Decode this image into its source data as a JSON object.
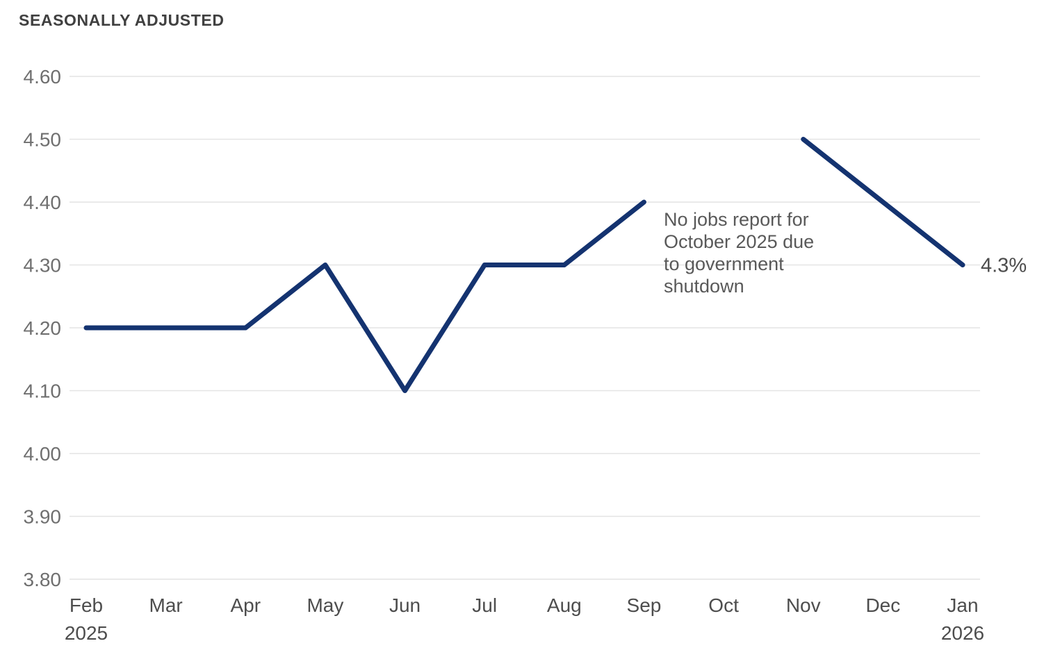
{
  "title": "SEASONALLY ADJUSTED",
  "colors": {
    "line": "#143370",
    "gridline": "#e4e4e4",
    "title_text": "#404040",
    "y_tick_text": "#6f6f6f",
    "x_tick_text": "#4d4d4d",
    "annotation_text": "#595959",
    "background": "#ffffff"
  },
  "chart_data": {
    "type": "line",
    "title": "SEASONALLY ADJUSTED",
    "categories": [
      "Feb\n2025",
      "Mar",
      "Apr",
      "May",
      "Jun",
      "Jul",
      "Aug",
      "Sep",
      "Oct",
      "Nov",
      "Dec",
      "Jan\n2026"
    ],
    "values": [
      4.2,
      4.2,
      4.2,
      4.3,
      4.1,
      4.3,
      4.3,
      4.4,
      null,
      4.5,
      4.4,
      4.3
    ],
    "xlabel": "",
    "ylabel": "",
    "ylim": [
      3.8,
      4.6
    ],
    "yticks": [
      "3.80",
      "3.90",
      "4.00",
      "4.10",
      "4.20",
      "4.30",
      "4.40",
      "4.50",
      "4.60"
    ],
    "grid": "horizontal",
    "legend": "none",
    "gap_category": "Oct",
    "annotation": {
      "text": "No jobs report for October 2025 due to government shutdown",
      "lines": [
        "No jobs report for",
        "October 2025 due",
        "to government",
        "shutdown"
      ]
    },
    "end_label": "4.3%"
  }
}
